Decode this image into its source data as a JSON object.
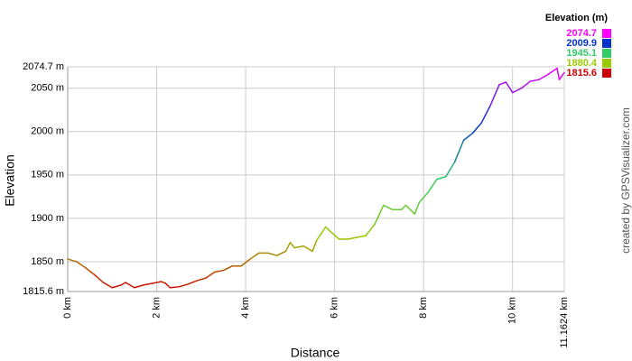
{
  "chart_data": {
    "type": "line",
    "ylabel": "Elevation",
    "xlabel": "Distance",
    "legend_title": "Elevation (m)",
    "credit": "created by GPSVisualizer.com",
    "colorscale": [
      {
        "value": 2074.7,
        "color": "#ff00ff"
      },
      {
        "value": 2009.9,
        "color": "#0033cc"
      },
      {
        "value": 1945.1,
        "color": "#33cc66"
      },
      {
        "value": 1880.4,
        "color": "#99cc00"
      },
      {
        "value": 1815.6,
        "color": "#cc0000"
      }
    ],
    "xlim": [
      0,
      11.1624
    ],
    "ylim": [
      1815.6,
      2074.7
    ],
    "xticks": [
      {
        "value": 0,
        "label": "0 km"
      },
      {
        "value": 2,
        "label": "2 km"
      },
      {
        "value": 4,
        "label": "4 km"
      },
      {
        "value": 6,
        "label": "6 km"
      },
      {
        "value": 8,
        "label": "8 km"
      },
      {
        "value": 10,
        "label": "10 km"
      },
      {
        "value": 11.1624,
        "label": "11.1624 km"
      }
    ],
    "yticks": [
      {
        "value": 1815.6,
        "label": "1815.6 m"
      },
      {
        "value": 1850,
        "label": "1850 m"
      },
      {
        "value": 1900,
        "label": "1900 m"
      },
      {
        "value": 1950,
        "label": "1950 m"
      },
      {
        "value": 2000,
        "label": "2000 m"
      },
      {
        "value": 2050,
        "label": "2050 m"
      },
      {
        "value": 2074.7,
        "label": "2074.7 m"
      }
    ],
    "grid": true,
    "series": [
      {
        "x": [
          0,
          0.2,
          0.4,
          0.6,
          0.8,
          1.0,
          1.2,
          1.3,
          1.5,
          1.7,
          1.9,
          2.1,
          2.2,
          2.3,
          2.5,
          2.7,
          2.9,
          3.1,
          3.3,
          3.5,
          3.7,
          3.9,
          4.1,
          4.3,
          4.5,
          4.7,
          4.9,
          5.0,
          5.1,
          5.3,
          5.5,
          5.6,
          5.8,
          5.9,
          6.1,
          6.3,
          6.5,
          6.7,
          6.9,
          7.1,
          7.3,
          7.5,
          7.6,
          7.8,
          7.9,
          8.1,
          8.3,
          8.5,
          8.7,
          8.9,
          9.1,
          9.3,
          9.5,
          9.7,
          9.85,
          10.0,
          10.2,
          10.4,
          10.6,
          10.8,
          11.0,
          11.05,
          11.1624
        ],
        "values": [
          1853,
          1850,
          1843,
          1835,
          1826,
          1820,
          1823,
          1826,
          1820,
          1823,
          1825,
          1827,
          1825,
          1820,
          1821,
          1824,
          1828,
          1831,
          1838,
          1840,
          1845,
          1845,
          1853,
          1860,
          1860,
          1857,
          1862,
          1872,
          1866,
          1868,
          1862,
          1875,
          1890,
          1885,
          1876,
          1876,
          1878,
          1880,
          1893,
          1915,
          1910,
          1910,
          1915,
          1905,
          1918,
          1930,
          1945,
          1948,
          1965,
          1990,
          1998,
          2010,
          2030,
          2054,
          2057,
          2045,
          2050,
          2058,
          2060,
          2066,
          2073,
          2060,
          2068
        ]
      }
    ]
  }
}
